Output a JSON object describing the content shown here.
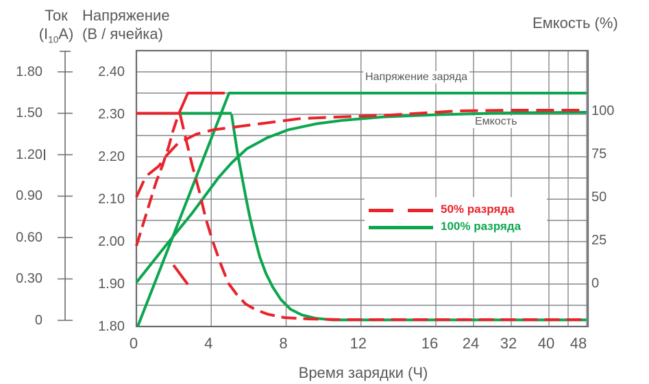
{
  "colors": {
    "red": "#E8232B",
    "green": "#0CA64F",
    "text": "#58595B",
    "grid": "#85878A",
    "border": "#6A6B6E"
  },
  "titles": {
    "current_line1": "Ток",
    "current_line2_pre": "(I",
    "current_line2_sub": "10",
    "current_line2_post": "A)",
    "voltage_line1": "Напряжение",
    "voltage_line2": "(В / ячейка)",
    "capacity": "Емкость (%)",
    "x_axis": "Время зарядки (Ч)"
  },
  "annotations": {
    "charge_voltage": "Напряжение заряда",
    "capacity": "Емкость"
  },
  "legend": {
    "item_50": "50% разряда",
    "item_100": "100% разряда"
  },
  "chart_data": {
    "type": "line",
    "title": "",
    "x_axis": {
      "label": "Время зарядки (Ч)",
      "unit": "hours",
      "ticks": [
        0,
        4,
        8,
        12,
        16,
        24,
        32,
        40,
        48
      ],
      "scale_note": "piecewise linear: 0-16 h wide, 16-48 h compressed"
    },
    "y_axis_voltage": {
      "label": "Напряжение (В / ячейка)",
      "ticks": [
        2.4,
        2.3,
        2.2,
        2.1,
        2.0,
        1.9,
        1.8
      ],
      "range": [
        1.8,
        2.45
      ]
    },
    "y_axis_current": {
      "label": "Ток (I10A)",
      "ticks": [
        1.8,
        1.5,
        1.2,
        0.9,
        0.6,
        0.3,
        0
      ],
      "range": [
        0,
        1.8
      ]
    },
    "y_axis_capacity": {
      "label": "Емкость (%)",
      "ticks": [
        100,
        75,
        50,
        25,
        0
      ],
      "range": [
        0,
        102
      ]
    },
    "grid": true,
    "legend_position": "center-right",
    "series": [
      {
        "name": "green-capacity",
        "label": "Емкость (100% разряда)",
        "axis": "capacity",
        "color": "green",
        "style": "solid",
        "points": [
          [
            0,
            0.5
          ],
          [
            1.5,
            21
          ],
          [
            3,
            41
          ],
          [
            4.4,
            61.5
          ],
          [
            5.1,
            70
          ],
          [
            5.9,
            78
          ],
          [
            7,
            84.5
          ],
          [
            8.1,
            89
          ],
          [
            9.6,
            92.5
          ],
          [
            11,
            94.5
          ],
          [
            13.2,
            96.5
          ],
          [
            16.6,
            97.8
          ],
          [
            31,
            98.8
          ],
          [
            48,
            99.2
          ]
        ]
      },
      {
        "name": "green-current-constant",
        "label": "Ток заряда (100% разряда), постоянный",
        "axis": "current",
        "color": "green",
        "style": "solid",
        "points": [
          [
            0,
            1.5
          ],
          [
            5.09,
            1.5
          ]
        ]
      },
      {
        "name": "green-current-decay",
        "label": "Ток заряда (100% разряда), спад",
        "axis": "current",
        "color": "green",
        "style": "solid",
        "points": [
          [
            5.09,
            1.49
          ],
          [
            5.27,
            1.33
          ],
          [
            5.42,
            1.2
          ],
          [
            5.6,
            1.07
          ],
          [
            5.82,
            0.91
          ],
          [
            6.04,
            0.76
          ],
          [
            6.3,
            0.61
          ],
          [
            6.59,
            0.46
          ],
          [
            6.92,
            0.34
          ],
          [
            7.29,
            0.24
          ],
          [
            7.72,
            0.15
          ],
          [
            8.24,
            0.08
          ],
          [
            8.82,
            0.04
          ],
          [
            9.56,
            0.015
          ],
          [
            10.5,
            0.003
          ],
          [
            48,
            0.003
          ]
        ]
      },
      {
        "name": "green-voltage",
        "label": "Напряжение заряда (100% разряда)",
        "axis": "voltage",
        "color": "green",
        "style": "solid",
        "points": [
          [
            0.07,
            1.8
          ],
          [
            4.95,
            2.35
          ],
          [
            48,
            2.35
          ]
        ]
      },
      {
        "name": "red-capacity",
        "label": "Емкость (50% разряда)",
        "axis": "capacity",
        "color": "red",
        "style": "dashed",
        "dash": "26 11",
        "points": [
          [
            0,
            50
          ],
          [
            0.5,
            62
          ],
          [
            1.2,
            68
          ],
          [
            1.6,
            74
          ],
          [
            2.2,
            81
          ],
          [
            3.2,
            86.5
          ],
          [
            4.1,
            89
          ],
          [
            6,
            91.7
          ],
          [
            8.8,
            95.6
          ],
          [
            11.6,
            96.8
          ],
          [
            13.6,
            97.6
          ],
          [
            20.8,
            100
          ],
          [
            32,
            100.4
          ],
          [
            48,
            100.4
          ]
        ]
      },
      {
        "name": "red-voltage-rise",
        "label": "Напряжение заряда (50% разряда), рост",
        "axis": "voltage",
        "color": "red",
        "style": "dashed",
        "dash": "20 9",
        "points": [
          [
            0,
            1.99
          ],
          [
            0.35,
            2.04
          ],
          [
            0.7,
            2.09
          ],
          [
            1.05,
            2.14
          ],
          [
            1.4,
            2.18
          ],
          [
            1.7,
            2.22
          ],
          [
            1.95,
            2.26
          ],
          [
            2.25,
            2.3
          ]
        ]
      },
      {
        "name": "red-voltage-boost",
        "label": "Напряжение заряда (50% разряда), плато",
        "axis": "voltage",
        "color": "red",
        "style": "solid",
        "points": [
          [
            2.25,
            2.3
          ],
          [
            2.75,
            2.35
          ],
          [
            4.72,
            2.35
          ]
        ]
      },
      {
        "name": "red-current-constant",
        "label": "Ток заряда (50% разряда), постоянный",
        "axis": "current",
        "color": "red",
        "style": "solid",
        "points": [
          [
            0,
            1.5
          ],
          [
            2.35,
            1.5
          ]
        ]
      },
      {
        "name": "red-current-decay",
        "label": "Ток заряда (50% разряда), спад",
        "axis": "current",
        "color": "red",
        "style": "dashed",
        "dash": "22 10",
        "points": [
          [
            2.34,
            1.49
          ],
          [
            2.67,
            1.3
          ],
          [
            2.97,
            1.13
          ],
          [
            3.37,
            0.93
          ],
          [
            3.7,
            0.74
          ],
          [
            4.06,
            0.58
          ],
          [
            4.5,
            0.41
          ],
          [
            4.91,
            0.27
          ],
          [
            5.35,
            0.19
          ],
          [
            5.82,
            0.12
          ],
          [
            6.33,
            0.08
          ],
          [
            7,
            0.045
          ],
          [
            7.9,
            0.02
          ],
          [
            9.2,
            0.01
          ],
          [
            11,
            0.005
          ],
          [
            48,
            0.005
          ]
        ]
      },
      {
        "name": "red-current-decay-stray-dash",
        "label": "Ток заряда (50% разряда), штрих",
        "axis": "current",
        "color": "red",
        "style": "solid",
        "points": [
          [
            1.98,
            0.4
          ],
          [
            2.75,
            0.26
          ]
        ]
      }
    ]
  }
}
